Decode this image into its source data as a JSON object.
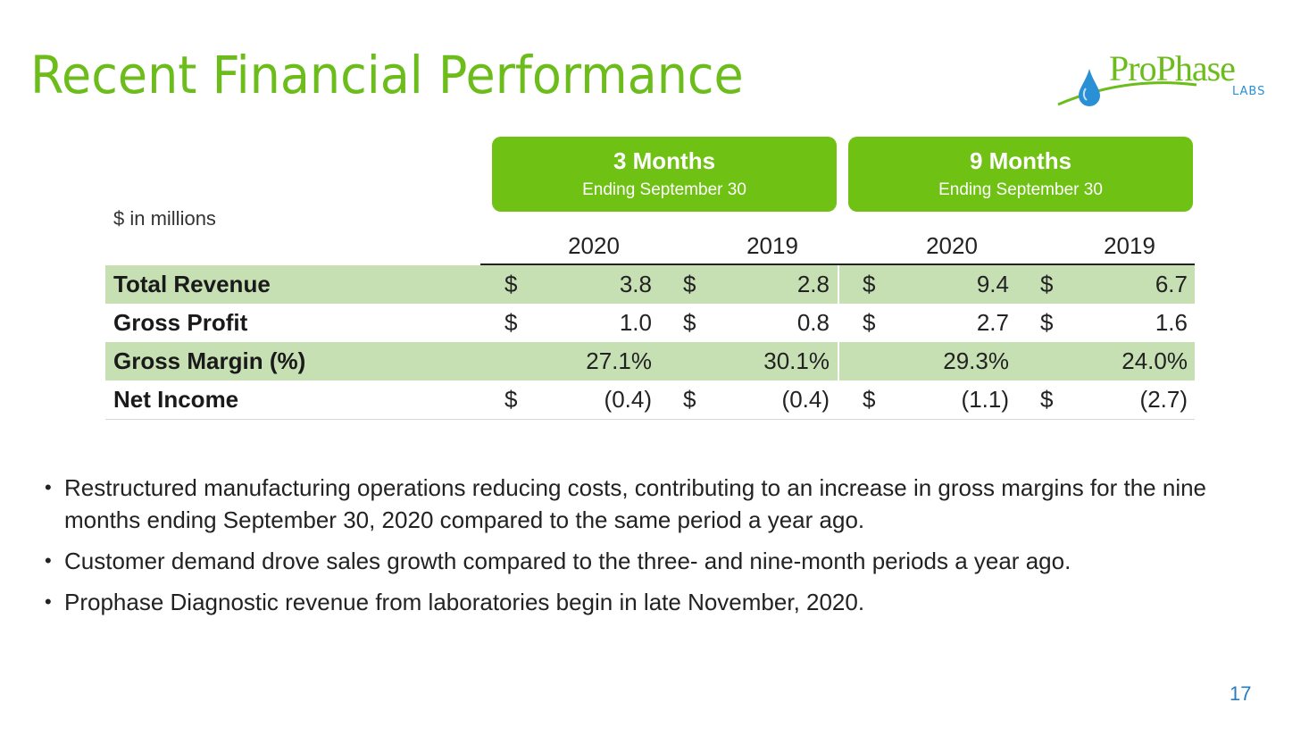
{
  "slide": {
    "title": "Recent Financial Performance",
    "page_number": "17",
    "logo": {
      "name": "ProPhase",
      "sub": "LABS",
      "brand_green": "#6cbd1c",
      "brand_blue": "#2b8fd6"
    }
  },
  "table": {
    "units": "$ in millions",
    "period_headers": [
      {
        "title": "3 Months",
        "subtitle": "Ending September 30"
      },
      {
        "title": "9 Months",
        "subtitle": "Ending September 30"
      }
    ],
    "years": [
      "2020",
      "2019",
      "2020",
      "2019"
    ],
    "rows": [
      {
        "label": "Total Revenue",
        "currency": [
          "$",
          "$",
          "$",
          "$"
        ],
        "values": [
          "3.8",
          "2.8",
          "9.4",
          "6.7"
        ]
      },
      {
        "label": "Gross Profit",
        "currency": [
          "$",
          "$",
          "$",
          "$"
        ],
        "values": [
          "1.0",
          "0.8",
          "2.7",
          "1.6"
        ]
      },
      {
        "label": "Gross Margin (%)",
        "currency": [
          "",
          "",
          "",
          ""
        ],
        "values": [
          "27.1%",
          "30.1%",
          "29.3%",
          "24.0%"
        ]
      },
      {
        "label": "Net Income",
        "currency": [
          "$",
          "$",
          "$",
          "$"
        ],
        "values": [
          "(0.4)",
          "(0.4)",
          "(1.1)",
          "(2.7)"
        ]
      }
    ],
    "colors": {
      "header_green": "#6fc113",
      "row_shade": "#c6e0b4"
    }
  },
  "bullets": [
    "Restructured manufacturing operations reducing costs, contributing to an increase in gross margins for the nine months ending September 30, 2020 compared to the same period a year ago.",
    "Customer demand drove sales growth compared to the three- and nine-month periods a year ago.",
    "Prophase Diagnostic revenue from laboratories begin in late November, 2020."
  ]
}
